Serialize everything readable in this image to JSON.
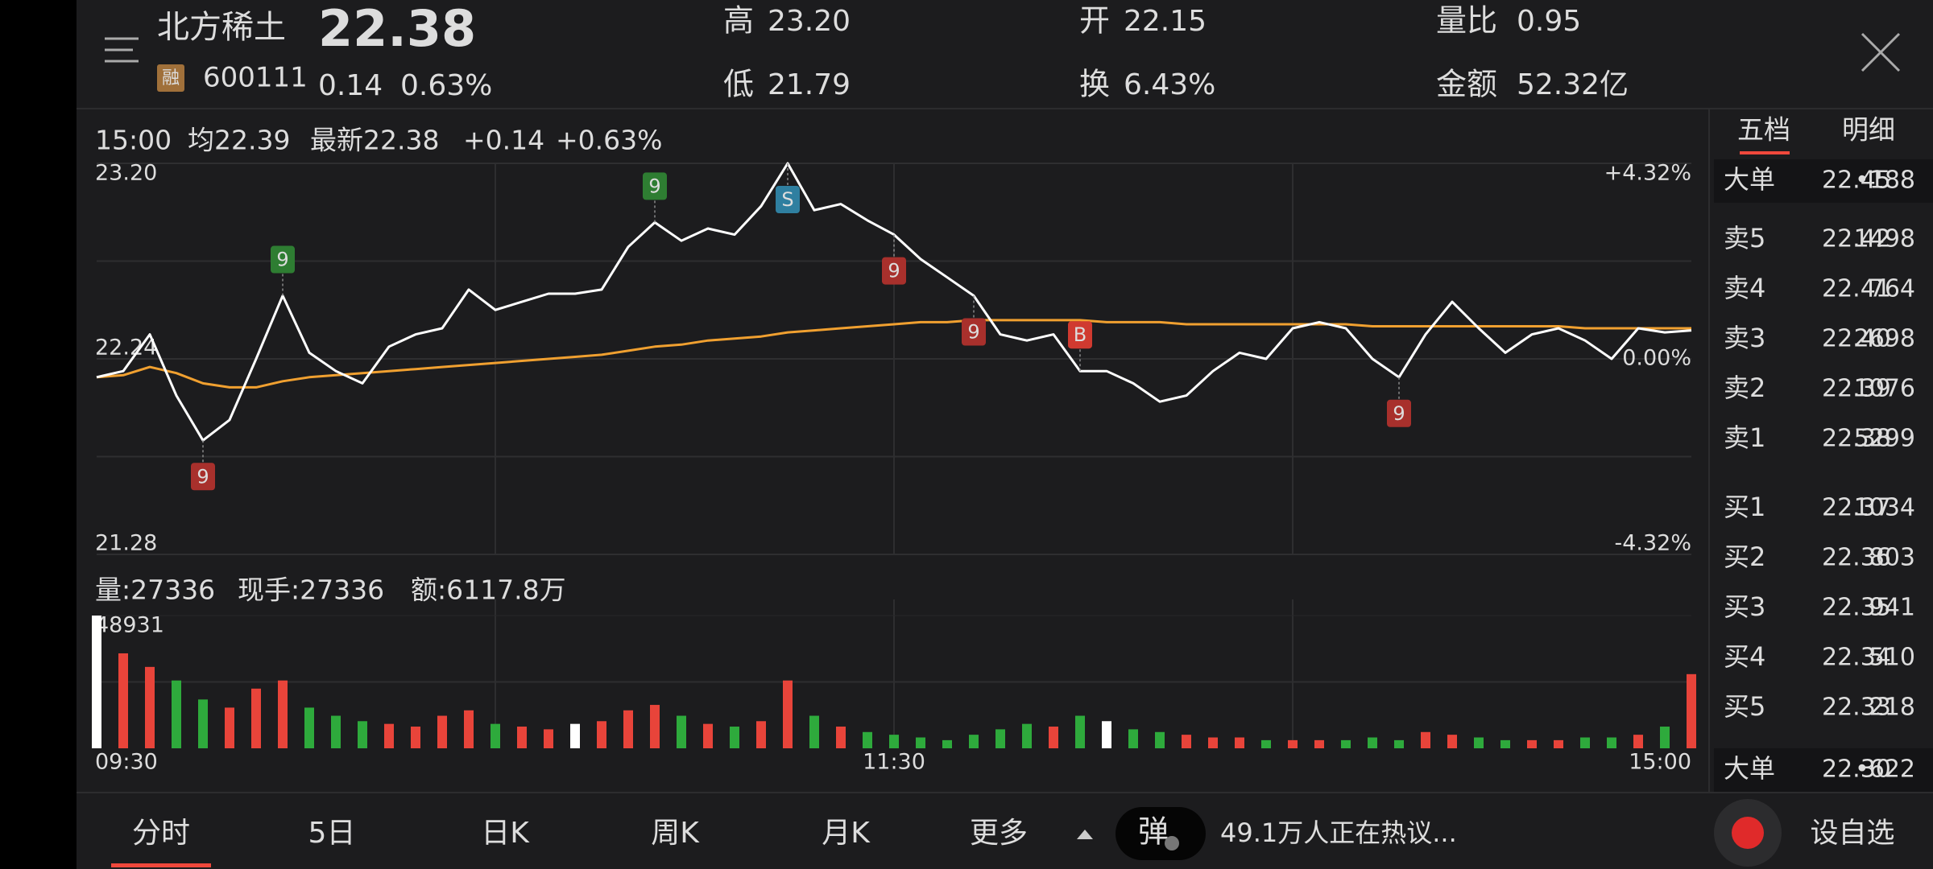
{
  "header": {
    "name": "北方稀土",
    "price": "22.38",
    "badge": "融",
    "code": "600111",
    "change": "0.14",
    "change_pct": "0.63%",
    "stats": [
      {
        "label": "高",
        "value": "23.20"
      },
      {
        "label": "低",
        "value": "21.79"
      },
      {
        "label": "开",
        "value": "22.15"
      },
      {
        "label": "换",
        "value": "6.43%"
      },
      {
        "label": "量比",
        "value": "0.95"
      },
      {
        "label": "金额",
        "value": "52.32亿"
      }
    ]
  },
  "info_line": {
    "time": "15:00",
    "average": "均22.39",
    "latest": "最新22.38",
    "change": "+0.14",
    "change_pct": "+0.63%"
  },
  "volume_line": {
    "volume": "量:27336",
    "current": "现手:27336",
    "amount": "额:6117.8万"
  },
  "chart_data": [
    {
      "type": "line",
      "series": [
        {
          "color": "#ffffff",
          "values": [
            22.15,
            22.18,
            22.36,
            22.06,
            21.84,
            21.94,
            22.24,
            22.55,
            22.27,
            22.18,
            22.12,
            22.3,
            22.36,
            22.39,
            22.58,
            22.48,
            22.52,
            22.56,
            22.56,
            22.58,
            22.79,
            22.91,
            22.82,
            22.88,
            22.85,
            22.99,
            23.2,
            22.97,
            23.0,
            22.92,
            22.85,
            22.73,
            22.64,
            22.55,
            22.36,
            22.33,
            22.36,
            22.18,
            22.18,
            22.12,
            22.03,
            22.06,
            22.18,
            22.27,
            22.24,
            22.39,
            22.42,
            22.39,
            22.24,
            22.15,
            22.36,
            22.52,
            22.39,
            22.27,
            22.36,
            22.39,
            22.33,
            22.24,
            22.39,
            22.37,
            22.38
          ]
        },
        {
          "color": "#f0a030",
          "values": [
            22.15,
            22.16,
            22.2,
            22.17,
            22.12,
            22.1,
            22.1,
            22.13,
            22.15,
            22.16,
            22.17,
            22.18,
            22.19,
            22.2,
            22.21,
            22.22,
            22.23,
            22.24,
            22.25,
            22.26,
            22.28,
            22.3,
            22.31,
            22.33,
            22.34,
            22.35,
            22.37,
            22.38,
            22.39,
            22.4,
            22.41,
            22.42,
            22.42,
            22.43,
            22.43,
            22.43,
            22.43,
            22.43,
            22.42,
            22.42,
            22.42,
            22.41,
            22.41,
            22.41,
            22.41,
            22.41,
            22.41,
            22.41,
            22.4,
            22.4,
            22.4,
            22.4,
            22.4,
            22.4,
            22.4,
            22.4,
            22.39,
            22.39,
            22.39,
            22.39,
            22.39
          ]
        }
      ],
      "ylim": [
        21.28,
        23.2
      ],
      "yticks": [
        21.28,
        22.24,
        {
          "value": 23.2,
          "label": "23.20"
        }
      ],
      "y2lim": [
        -4.32,
        4.32
      ],
      "y2ticks": [
        {
          "value": -4.32,
          "label": "-4.32%"
        },
        {
          "value": 0,
          "label": "0.00%"
        },
        {
          "value": 4.32,
          "label": "+4.32%"
        }
      ],
      "annotations": [
        {
          "text": "9",
          "index": 4,
          "position": "below",
          "color": "#a8302c"
        },
        {
          "text": "9",
          "index": 7,
          "position": "above",
          "color": "#2e7d32"
        },
        {
          "text": "9",
          "index": 21,
          "position": "above",
          "color": "#2e7d32"
        },
        {
          "text": "S",
          "index": 26,
          "position": "below",
          "color": "#2f7fa0"
        },
        {
          "text": "9",
          "index": 30,
          "position": "below",
          "color": "#a8302c"
        },
        {
          "text": "9",
          "index": 33,
          "position": "below",
          "color": "#a8302c"
        },
        {
          "text": "B",
          "index": 37,
          "position": "above",
          "color": "#d03a30"
        },
        {
          "text": "9",
          "index": 49,
          "position": "below",
          "color": "#a8302c"
        }
      ]
    },
    {
      "type": "bar",
      "categories": [
        "09:30",
        null,
        null,
        null,
        null,
        null,
        null,
        null,
        null,
        null,
        null,
        null,
        null,
        null,
        null,
        null,
        null,
        null,
        null,
        null,
        null,
        null,
        null,
        null,
        null,
        null,
        null,
        null,
        null,
        null,
        "11:30",
        null,
        null,
        null,
        null,
        null,
        null,
        null,
        null,
        null,
        null,
        null,
        null,
        null,
        null,
        null,
        null,
        null,
        null,
        null,
        null,
        null,
        null,
        null,
        null,
        null,
        null,
        null,
        null,
        null,
        "15:00"
      ],
      "values": [
        48931,
        35000,
        30000,
        25000,
        18000,
        15000,
        22000,
        25000,
        15000,
        12000,
        10000,
        9000,
        8000,
        12000,
        14000,
        9000,
        8000,
        7000,
        9000,
        10000,
        14000,
        16000,
        12000,
        9000,
        8000,
        10000,
        25000,
        12000,
        8000,
        6000,
        5000,
        4000,
        3000,
        5000,
        7000,
        9000,
        8000,
        12000,
        10000,
        7000,
        6000,
        5000,
        4000,
        4000,
        3000,
        3000,
        3000,
        3000,
        4000,
        3000,
        6000,
        5000,
        4000,
        3000,
        3000,
        3000,
        4000,
        4000,
        5000,
        8000,
        27336
      ],
      "ylim": [
        0,
        48931
      ],
      "yticks": [
        48931
      ],
      "color_up": "#e8443a",
      "color_down": "#2eaa3c",
      "color_flat": "#ffffff"
    }
  ],
  "order_book": {
    "tabs": [
      "五档",
      "明细"
    ],
    "rows": [
      {
        "label": "大单",
        "price": "22.45",
        "volume": "•188"
      },
      {
        "label": "卖5",
        "price": "22.42",
        "volume": "1498"
      },
      {
        "label": "卖4",
        "price": "22.41",
        "volume": "764"
      },
      {
        "label": "卖3",
        "price": "22.40",
        "volume": "2698"
      },
      {
        "label": "卖2",
        "price": "22.39",
        "volume": "1076"
      },
      {
        "label": "卖1",
        "price": "22.38",
        "volume": "5299"
      },
      {
        "label": "买1",
        "price": "22.37",
        "volume": "1034"
      },
      {
        "label": "买2",
        "price": "22.36",
        "volume": "803"
      },
      {
        "label": "买3",
        "price": "22.35",
        "volume": "941"
      },
      {
        "label": "买4",
        "price": "22.34",
        "volume": "510"
      },
      {
        "label": "买5",
        "price": "22.33",
        "volume": "218"
      },
      {
        "label": "大单",
        "price": "22.30",
        "volume": "•622"
      }
    ]
  },
  "bottom_nav": {
    "tabs": [
      "分时",
      "5日",
      "日K",
      "周K",
      "月K",
      "更多"
    ],
    "hot_badge": "弹",
    "discussion": "49.1万人正在热议...",
    "add_watchlist": "设自选"
  }
}
